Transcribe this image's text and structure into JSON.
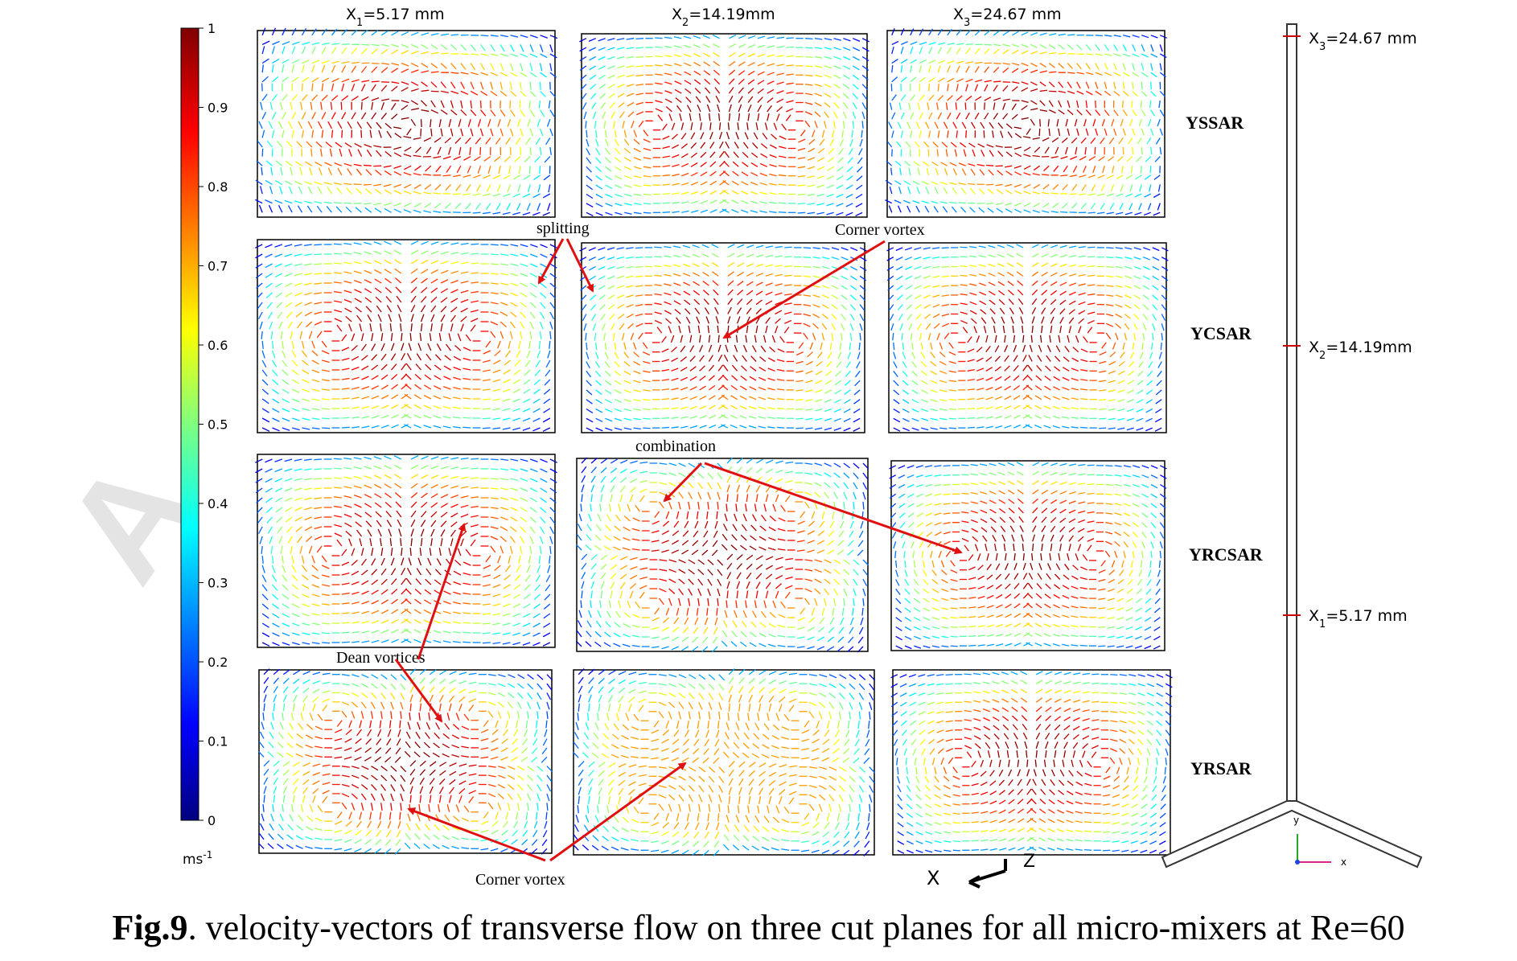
{
  "colorbar": {
    "ticks": [
      "1",
      "0.9",
      "0.8",
      "0.7",
      "0.6",
      "0.5",
      "0.4",
      "0.3",
      "0.2",
      "0.1",
      "0"
    ],
    "unit": "ms",
    "unit_sup": "-1"
  },
  "columns": [
    {
      "prefix": "X",
      "sub": "1",
      "rest": "=5.17 mm"
    },
    {
      "prefix": "X",
      "sub": "2",
      "rest": "=14.19mm"
    },
    {
      "prefix": "X",
      "sub": "3",
      "rest": "=24.67 mm"
    }
  ],
  "rows": [
    "YSSAR",
    "YCSAR",
    "YRCSAR",
    "YRSAR"
  ],
  "annotations": {
    "splitting": "splitting",
    "corner_vortex_top": "Corner vortex",
    "combination": "combination",
    "dean_vortices": "Dean vortices",
    "corner_vortex_bottom": "Corner vortex"
  },
  "axis_labels": {
    "x": "X",
    "z": "Z",
    "small_y": "y",
    "small_x": "x"
  },
  "geometry_labels": [
    {
      "prefix": "X",
      "sub": "3",
      "rest": "=24.67 mm"
    },
    {
      "prefix": "X",
      "sub": "2",
      "rest": "=14.19mm"
    },
    {
      "prefix": "X",
      "sub": "1",
      "rest": "=5.17 mm"
    }
  ],
  "watermark": "A",
  "caption": {
    "bold": "Fig.9",
    "rest": ". velocity-vectors of transverse flow on three cut planes for all micro-mixers at Re=60"
  }
}
